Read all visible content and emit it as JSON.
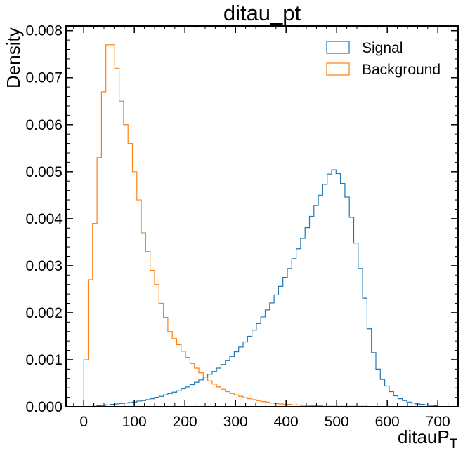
{
  "chart_data": {
    "type": "histogram",
    "title": "ditau_pt",
    "xlabel": "ditauP",
    "xlabel_subscript": "T",
    "ylabel": "Density",
    "xlim": [
      -35,
      740
    ],
    "ylim": [
      0,
      0.0081
    ],
    "xticks": [
      0,
      100,
      200,
      300,
      400,
      500,
      600,
      700
    ],
    "xtick_labels": [
      "0",
      "100",
      "200",
      "300",
      "400",
      "500",
      "600",
      "700"
    ],
    "yticks": [
      0,
      0.001,
      0.002,
      0.003,
      0.004,
      0.005,
      0.006,
      0.007,
      0.008
    ],
    "ytick_labels": [
      "0.000",
      "0.001",
      "0.002",
      "0.003",
      "0.004",
      "0.005",
      "0.006",
      "0.007",
      "0.008"
    ],
    "grid": false,
    "legend_position": "top-right",
    "bin_edges_start": 0,
    "bin_width": 8.75,
    "series": [
      {
        "name": "Signal",
        "color": "#1f77b4",
        "values": [
          0,
          0,
          1e-05,
          2e-05,
          3e-05,
          4e-05,
          5e-05,
          6e-05,
          7e-05,
          8e-05,
          9e-05,
          0.0001,
          0.00012,
          0.00013,
          0.00015,
          0.00017,
          0.0002,
          0.00022,
          0.00025,
          0.00028,
          0.00031,
          0.00034,
          0.00038,
          0.00042,
          0.00047,
          0.00052,
          0.00057,
          0.00063,
          0.00069,
          0.00075,
          0.00082,
          0.0009,
          0.00098,
          0.00107,
          0.00117,
          0.00127,
          0.00138,
          0.0015,
          0.00163,
          0.00177,
          0.00191,
          0.00206,
          0.00221,
          0.00238,
          0.00256,
          0.00275,
          0.00294,
          0.00315,
          0.00336,
          0.00358,
          0.00381,
          0.00405,
          0.00428,
          0.0045,
          0.00473,
          0.00495,
          0.00504,
          0.00496,
          0.00475,
          0.00446,
          0.00403,
          0.00348,
          0.00294,
          0.00231,
          0.00166,
          0.00115,
          0.0008,
          0.00058,
          0.00044,
          0.00032,
          0.00023,
          0.00017,
          0.00013,
          0.0001,
          8e-05,
          6e-05,
          5e-05,
          4e-05,
          3e-05,
          2e-05
        ]
      },
      {
        "name": "Background",
        "color": "#ff7f0e",
        "values": [
          0.001,
          0.0027,
          0.0039,
          0.0053,
          0.0067,
          0.0077,
          0.0077,
          0.0072,
          0.0065,
          0.006,
          0.0056,
          0.005,
          0.0044,
          0.0037,
          0.0033,
          0.0029,
          0.0026,
          0.0022,
          0.0019,
          0.0016,
          0.00145,
          0.00132,
          0.00118,
          0.00105,
          0.00092,
          0.00082,
          0.00072,
          0.00063,
          0.00055,
          0.00048,
          0.00042,
          0.00037,
          0.00032,
          0.00028,
          0.00025,
          0.00022,
          0.00019,
          0.00017,
          0.00015,
          0.00013,
          0.00011,
          0.0001,
          8e-05,
          7e-05,
          6e-05,
          5e-05,
          5e-05,
          4e-05,
          4e-05,
          3e-05,
          3e-05,
          2e-05,
          2e-05,
          2e-05,
          1e-05,
          1e-05,
          1e-05,
          1e-05,
          1e-05,
          1e-05,
          1e-05,
          1e-05,
          1e-05,
          1e-05,
          0
        ]
      }
    ]
  }
}
